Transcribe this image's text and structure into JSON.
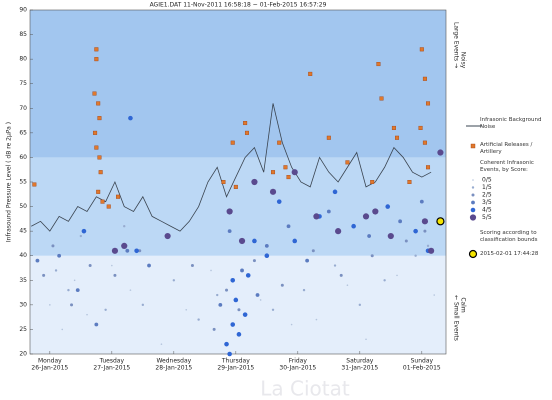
{
  "chart_data": {
    "type": "scatter",
    "title": "AGIE1.DAT   11-Nov-2011 16:58:18   ~   01-Feb-2015 16:57:29",
    "y_label": "Infrasound Pressure Level  ( dB re 2µPa )",
    "annotations": {
      "top": "Large Events →",
      "top_sub": "Noisy",
      "bottom": "← Small Events",
      "bottom_sub": "Calm",
      "watermark": "La Ciotat"
    },
    "xlim": [
      -0.32,
      6.39
    ],
    "xticks": [
      {
        "value": 0,
        "label": "Monday"
      },
      {
        "value": 1,
        "label": "Tuesday"
      },
      {
        "value": 2,
        "label": "Wednesday"
      },
      {
        "value": 3,
        "label": "Thursday"
      },
      {
        "value": 4,
        "label": "Friday"
      },
      {
        "value": 5,
        "label": "Saturday"
      },
      {
        "value": 6,
        "label": "Sunday"
      }
    ],
    "xtick_dates": [
      "26-Jan-2015",
      "27-Jan-2015",
      "28-Jan-2015",
      "29-Jan-2015",
      "30-Jan-2015",
      "31-Jan-2015",
      "01-Feb-2015"
    ],
    "ylim": [
      20,
      90
    ],
    "yticks": [
      20,
      25,
      30,
      35,
      40,
      45,
      50,
      55,
      60,
      65,
      70,
      75,
      80,
      85,
      90
    ],
    "bands": [
      {
        "from": 20,
        "to": 40,
        "color": "#e4eefb"
      },
      {
        "from": 40,
        "to": 60,
        "color": "#bcd8f5"
      },
      {
        "from": 60,
        "to": 90,
        "color": "#a2c6ef"
      }
    ],
    "noise": {
      "name": "Infrasonic Background Noise",
      "color": "#3a4450",
      "x": [
        -0.3,
        -0.15,
        0,
        0.15,
        0.3,
        0.45,
        0.6,
        0.75,
        0.9,
        1.05,
        1.2,
        1.35,
        1.5,
        1.65,
        1.8,
        1.95,
        2.1,
        2.25,
        2.4,
        2.55,
        2.7,
        2.85,
        3,
        3.15,
        3.3,
        3.45,
        3.6,
        3.75,
        3.9,
        4.05,
        4.2,
        4.35,
        4.5,
        4.65,
        4.8,
        4.95,
        5.1,
        5.25,
        5.4,
        5.55,
        5.7,
        5.85,
        6,
        6.15
      ],
      "values": [
        46,
        47,
        45,
        48,
        47,
        50,
        49,
        52,
        51,
        55,
        50,
        49,
        52,
        48,
        47,
        46,
        45,
        47,
        50,
        55,
        58,
        52,
        56,
        60,
        62,
        57,
        71,
        63,
        58,
        55,
        54,
        60,
        57,
        55,
        58,
        61,
        54,
        55,
        58,
        62,
        60,
        57,
        56,
        57
      ]
    },
    "artillery": {
      "name": "Artificial Releases / Artillery",
      "color": "#e0782c",
      "x": [
        -0.25,
        0.75,
        0.75,
        0.72,
        0.78,
        0.8,
        0.73,
        0.75,
        0.8,
        0.82,
        0.78,
        0.85,
        0.95,
        1.1,
        2.8,
        2.95,
        3.15,
        3.18,
        3,
        3.6,
        3.7,
        3.8,
        3.85,
        4.2,
        4.5,
        4.8,
        5.3,
        5.35,
        5.55,
        5.6,
        5.2,
        5.8,
        6,
        6.05,
        6.1,
        5.98,
        6.05,
        6.1
      ],
      "values": [
        54.5,
        82,
        80,
        73,
        71,
        68,
        65,
        62,
        60,
        57,
        53,
        51,
        50,
        52,
        55,
        63,
        67,
        65,
        54,
        57,
        63,
        58,
        56,
        77,
        64,
        59,
        79,
        72,
        66,
        64,
        55,
        55,
        82,
        76,
        71,
        66,
        63,
        58
      ]
    },
    "events_title": "Coherent Infrasonic Events, by Score:",
    "series": [
      {
        "name": "0/5",
        "color": "#b4c4dc",
        "x": [
          0,
          0.2,
          0.4,
          0.6,
          1.3,
          1.8,
          2.2,
          2.6,
          3.4,
          4.3,
          4.8,
          5.1,
          5.6,
          6.2,
          1,
          3.9
        ],
        "values": [
          30,
          25,
          35,
          28,
          33,
          22,
          29,
          37,
          31,
          27,
          34,
          23,
          36,
          32,
          38,
          26
        ]
      },
      {
        "name": "1/5",
        "color": "#98acd0",
        "x": [
          0.1,
          0.3,
          0.9,
          1.5,
          2,
          2.4,
          2.7,
          3.2,
          3.6,
          4.1,
          4.6,
          5,
          5.4,
          5.9,
          6.1,
          0.5,
          1.2
        ],
        "values": [
          37,
          33,
          29,
          30,
          35,
          27,
          32,
          36,
          29,
          33,
          38,
          30,
          35,
          40,
          42,
          44,
          46
        ]
      },
      {
        "name": "2/5",
        "color": "#7a90c0",
        "x": [
          0.05,
          0.35,
          0.65,
          1.05,
          1.45,
          2.3,
          2.65,
          2.85,
          3.05,
          3.3,
          3.75,
          4.25,
          4.7,
          5.2,
          5.75,
          6.05,
          -0.1
        ],
        "values": [
          42,
          30,
          38,
          36,
          41,
          38,
          25,
          33,
          29,
          39,
          34,
          41,
          36,
          40,
          43,
          45,
          36
        ]
      },
      {
        "name": "3/5",
        "color": "#5c7cc0",
        "x": [
          0.15,
          0.45,
          0.75,
          1.25,
          1.6,
          2.75,
          2.9,
          3.1,
          3.35,
          3.5,
          3.85,
          4.15,
          4.5,
          5.15,
          5.65,
          6,
          -0.2
        ],
        "values": [
          40,
          33,
          26,
          41,
          38,
          30,
          45,
          37,
          32,
          42,
          46,
          39,
          49,
          44,
          47,
          51,
          39
        ]
      },
      {
        "name": "4/5",
        "color": "#2f66d4",
        "x": [
          0.55,
          1.3,
          1.4,
          2.85,
          2.9,
          2.95,
          3,
          3.05,
          3.2,
          3.3,
          3.5,
          3.7,
          3.95,
          4.35,
          4.6,
          4.9,
          5.45,
          5.9,
          6.1,
          3.15,
          2.95
        ],
        "values": [
          45,
          68,
          41,
          22,
          20,
          26,
          31,
          24,
          36,
          43,
          40,
          51,
          43,
          48,
          53,
          46,
          50,
          45,
          41,
          28,
          35
        ]
      },
      {
        "name": "5/5",
        "color": "#5a4a8e",
        "x": [
          1.05,
          1.2,
          1.9,
          2.9,
          3.1,
          3.3,
          3.6,
          3.95,
          4.3,
          4.65,
          5.1,
          5.25,
          5.5,
          6.15,
          6.3,
          6.05
        ],
        "values": [
          41,
          42,
          44,
          49,
          43,
          55,
          53,
          57,
          48,
          45,
          48,
          49,
          44,
          41,
          61,
          47
        ]
      }
    ],
    "highlight": {
      "note": "Scoring according to classification bounds",
      "label": "2015-02-01 17:44:28",
      "color": "#f4e400",
      "x": [
        6.3
      ],
      "values": [
        47
      ]
    }
  }
}
